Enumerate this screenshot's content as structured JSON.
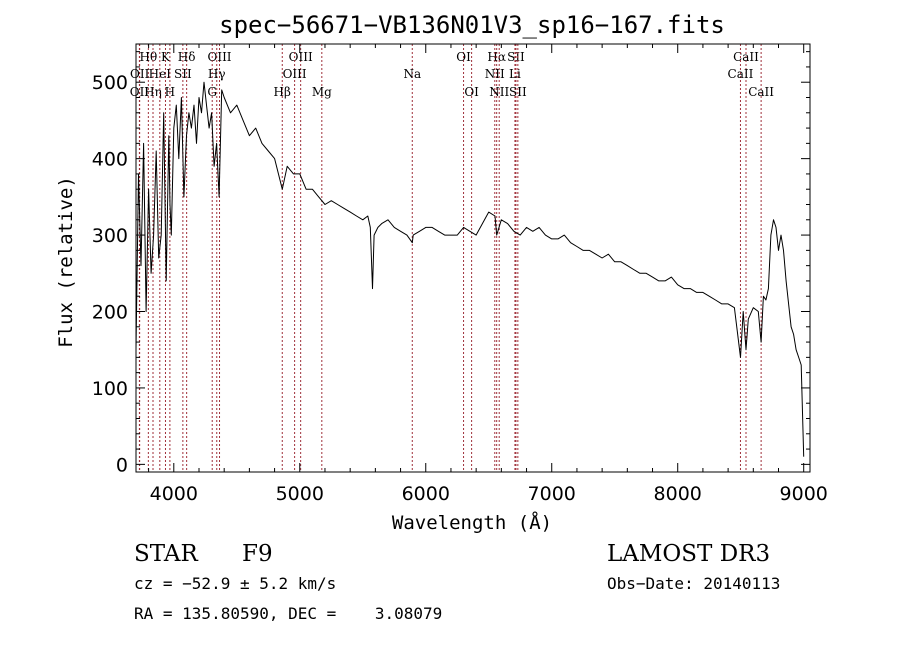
{
  "chart_data": {
    "type": "line",
    "title": "spec−56671−VB136N01V3_sp16−167.fits",
    "xlabel": "Wavelength (Å)",
    "ylabel": "Flux (relative)",
    "xlim": [
      3700,
      9050
    ],
    "ylim": [
      -10,
      550
    ],
    "xticks": [
      4000,
      5000,
      6000,
      7000,
      8000,
      9000
    ],
    "yticks": [
      0,
      100,
      200,
      300,
      400,
      500
    ],
    "grid": false,
    "line_color": "#000000",
    "marker_color": "#a0303a",
    "series": [
      {
        "name": "spectrum",
        "x": [
          3700,
          3720,
          3740,
          3760,
          3780,
          3800,
          3820,
          3840,
          3860,
          3880,
          3900,
          3920,
          3940,
          3960,
          3970,
          3980,
          4000,
          4020,
          4040,
          4060,
          4080,
          4101,
          4120,
          4140,
          4160,
          4180,
          4200,
          4220,
          4240,
          4260,
          4280,
          4300,
          4320,
          4340,
          4360,
          4380,
          4400,
          4450,
          4500,
          4550,
          4600,
          4650,
          4700,
          4750,
          4800,
          4861,
          4900,
          4950,
          5000,
          5050,
          5100,
          5150,
          5200,
          5250,
          5300,
          5350,
          5400,
          5450,
          5500,
          5540,
          5560,
          5577,
          5590,
          5620,
          5650,
          5700,
          5750,
          5800,
          5850,
          5893,
          5900,
          5950,
          6000,
          6050,
          6100,
          6150,
          6200,
          6250,
          6300,
          6350,
          6400,
          6450,
          6500,
          6550,
          6563,
          6600,
          6650,
          6700,
          6750,
          6800,
          6850,
          6900,
          6950,
          7000,
          7050,
          7100,
          7150,
          7200,
          7250,
          7300,
          7350,
          7400,
          7450,
          7500,
          7550,
          7600,
          7650,
          7700,
          7750,
          7800,
          7850,
          7900,
          7950,
          8000,
          8050,
          8100,
          8150,
          8200,
          8250,
          8300,
          8350,
          8400,
          8450,
          8498,
          8520,
          8542,
          8560,
          8600,
          8640,
          8662,
          8680,
          8700,
          8720,
          8740,
          8760,
          8780,
          8800,
          8820,
          8840,
          8860,
          8880,
          8900,
          8920,
          8940,
          8960,
          8980,
          9000
        ],
        "y": [
          150,
          380,
          260,
          420,
          200,
          360,
          250,
          300,
          410,
          270,
          300,
          460,
          240,
          430,
          340,
          300,
          440,
          470,
          400,
          480,
          350,
          430,
          460,
          440,
          470,
          420,
          480,
          460,
          500,
          470,
          440,
          460,
          390,
          420,
          350,
          490,
          480,
          460,
          470,
          450,
          430,
          440,
          420,
          410,
          400,
          360,
          390,
          380,
          380,
          360,
          360,
          350,
          340,
          345,
          340,
          335,
          330,
          325,
          320,
          325,
          310,
          230,
          300,
          310,
          315,
          320,
          310,
          305,
          300,
          290,
          300,
          305,
          310,
          310,
          305,
          300,
          300,
          300,
          310,
          305,
          300,
          315,
          330,
          325,
          300,
          320,
          315,
          305,
          300,
          310,
          305,
          310,
          300,
          295,
          295,
          300,
          290,
          285,
          280,
          280,
          275,
          270,
          275,
          265,
          265,
          260,
          255,
          250,
          250,
          245,
          240,
          240,
          245,
          235,
          230,
          230,
          225,
          225,
          220,
          215,
          210,
          210,
          205,
          140,
          200,
          150,
          190,
          205,
          200,
          160,
          220,
          215,
          230,
          300,
          320,
          310,
          280,
          300,
          280,
          240,
          210,
          180,
          170,
          150,
          140,
          130,
          10
        ]
      }
    ],
    "lines": [
      {
        "name": "OII",
        "x": 3727,
        "row": 2
      },
      {
        "name": "Hθ",
        "x": 3798,
        "row": 0
      },
      {
        "name": "OII",
        "x": 3729,
        "row": 1
      },
      {
        "name": "Hη",
        "x": 3835,
        "row": 2
      },
      {
        "name": "K",
        "x": 3934,
        "row": 0
      },
      {
        "name": "HeI",
        "x": 3889,
        "row": 1
      },
      {
        "name": "H",
        "x": 3969,
        "row": 2
      },
      {
        "name": "SII",
        "x": 4072,
        "row": 1
      },
      {
        "name": "Hδ",
        "x": 4102,
        "row": 0
      },
      {
        "name": "OIII",
        "x": 4363,
        "row": 0
      },
      {
        "name": "Hγ",
        "x": 4341,
        "row": 1
      },
      {
        "name": "G",
        "x": 4305,
        "row": 2
      },
      {
        "name": "Hβ",
        "x": 4861,
        "row": 2
      },
      {
        "name": "OIII",
        "x": 5007,
        "row": 0
      },
      {
        "name": "OIII",
        "x": 4959,
        "row": 1
      },
      {
        "name": "Mg",
        "x": 5175,
        "row": 2
      },
      {
        "name": "Na",
        "x": 5893,
        "row": 1
      },
      {
        "name": "OI",
        "x": 6300,
        "row": 0
      },
      {
        "name": "OI",
        "x": 6364,
        "row": 2
      },
      {
        "name": "Hα",
        "x": 6563,
        "row": 0
      },
      {
        "name": "NII",
        "x": 6548,
        "row": 1
      },
      {
        "name": "NII",
        "x": 6583,
        "row": 2
      },
      {
        "name": "SII",
        "x": 6716,
        "row": 0
      },
      {
        "name": "Li",
        "x": 6708,
        "row": 1
      },
      {
        "name": "SII",
        "x": 6731,
        "row": 2
      },
      {
        "name": "CaII",
        "x": 8542,
        "row": 0
      },
      {
        "name": "CaII",
        "x": 8498,
        "row": 1
      },
      {
        "name": "CaII",
        "x": 8662,
        "row": 2
      }
    ]
  },
  "info": {
    "object_class": "STAR",
    "subclass": "F9",
    "cz": "cz = −52.9 ± 5.2 km/s",
    "coords": "RA = 135.80590, DEC =    3.08079",
    "survey": "LAMOST DR3",
    "obs_date": "Obs−Date: 20140113"
  }
}
